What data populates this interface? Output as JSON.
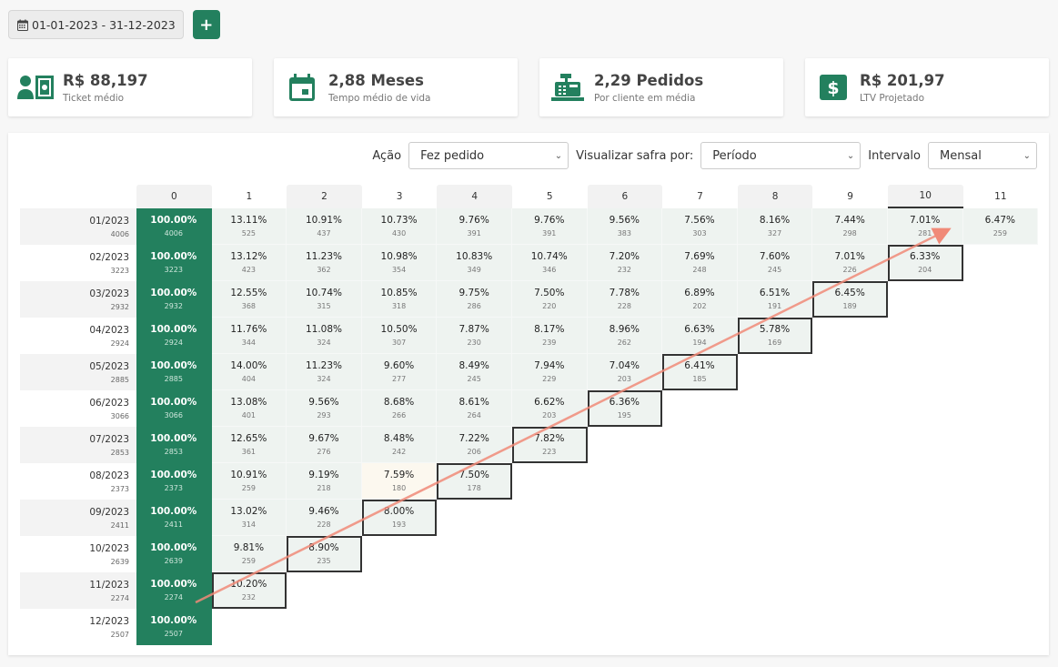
{
  "topbar": {
    "date_range": "01-01-2023 - 31-12-2023",
    "add_label": "+"
  },
  "kpis": [
    {
      "value": "R$ 88,197",
      "label": "Ticket médio",
      "icon": "money-user-icon"
    },
    {
      "value": "2,88 Meses",
      "label": "Tempo médio de vida",
      "icon": "calendar-icon"
    },
    {
      "value": "2,29 Pedidos",
      "label": "Por cliente em média",
      "icon": "cash-register-icon"
    },
    {
      "value": "R$ 201,97",
      "label": "LTV Projetado",
      "icon": "dollar-sign-icon"
    }
  ],
  "filters": {
    "action_label": "Ação",
    "action_value": "Fez pedido",
    "cohort_label": "Visualizar safra por:",
    "cohort_value": "Período",
    "interval_label": "Intervalo",
    "interval_value": "Mensal"
  },
  "colors": {
    "accent": "#23805e",
    "cell_bg": "#eef3f0",
    "highlight_border": "#333333",
    "arrow": "#f08a78"
  },
  "cohort": {
    "columns": [
      "0",
      "1",
      "2",
      "3",
      "4",
      "5",
      "6",
      "7",
      "8",
      "9",
      "10",
      "11"
    ],
    "rows": [
      {
        "month": "01/2023",
        "size": "4006",
        "cells": [
          [
            "100.00%",
            "4006"
          ],
          [
            "13.11%",
            "525"
          ],
          [
            "10.91%",
            "437"
          ],
          [
            "10.73%",
            "430"
          ],
          [
            "9.76%",
            "391"
          ],
          [
            "9.76%",
            "391"
          ],
          [
            "9.56%",
            "383"
          ],
          [
            "7.56%",
            "303"
          ],
          [
            "8.16%",
            "327"
          ],
          [
            "7.44%",
            "298"
          ],
          [
            "7.01%",
            "281"
          ],
          [
            "6.47%",
            "259"
          ]
        ]
      },
      {
        "month": "02/2023",
        "size": "3223",
        "cells": [
          [
            "100.00%",
            "3223"
          ],
          [
            "13.12%",
            "423"
          ],
          [
            "11.23%",
            "362"
          ],
          [
            "10.98%",
            "354"
          ],
          [
            "10.83%",
            "349"
          ],
          [
            "10.74%",
            "346"
          ],
          [
            "7.20%",
            "232"
          ],
          [
            "7.69%",
            "248"
          ],
          [
            "7.60%",
            "245"
          ],
          [
            "7.01%",
            "226"
          ],
          [
            "6.33%",
            "204"
          ]
        ]
      },
      {
        "month": "03/2023",
        "size": "2932",
        "cells": [
          [
            "100.00%",
            "2932"
          ],
          [
            "12.55%",
            "368"
          ],
          [
            "10.74%",
            "315"
          ],
          [
            "10.85%",
            "318"
          ],
          [
            "9.75%",
            "286"
          ],
          [
            "7.50%",
            "220"
          ],
          [
            "7.78%",
            "228"
          ],
          [
            "6.89%",
            "202"
          ],
          [
            "6.51%",
            "191"
          ],
          [
            "6.45%",
            "189"
          ]
        ]
      },
      {
        "month": "04/2023",
        "size": "2924",
        "cells": [
          [
            "100.00%",
            "2924"
          ],
          [
            "11.76%",
            "344"
          ],
          [
            "11.08%",
            "324"
          ],
          [
            "10.50%",
            "307"
          ],
          [
            "7.87%",
            "230"
          ],
          [
            "8.17%",
            "239"
          ],
          [
            "8.96%",
            "262"
          ],
          [
            "6.63%",
            "194"
          ],
          [
            "5.78%",
            "169"
          ]
        ]
      },
      {
        "month": "05/2023",
        "size": "2885",
        "cells": [
          [
            "100.00%",
            "2885"
          ],
          [
            "14.00%",
            "404"
          ],
          [
            "11.23%",
            "324"
          ],
          [
            "9.60%",
            "277"
          ],
          [
            "8.49%",
            "245"
          ],
          [
            "7.94%",
            "229"
          ],
          [
            "7.04%",
            "203"
          ],
          [
            "6.41%",
            "185"
          ]
        ]
      },
      {
        "month": "06/2023",
        "size": "3066",
        "cells": [
          [
            "100.00%",
            "3066"
          ],
          [
            "13.08%",
            "401"
          ],
          [
            "9.56%",
            "293"
          ],
          [
            "8.68%",
            "266"
          ],
          [
            "8.61%",
            "264"
          ],
          [
            "6.62%",
            "203"
          ],
          [
            "6.36%",
            "195"
          ]
        ]
      },
      {
        "month": "07/2023",
        "size": "2853",
        "cells": [
          [
            "100.00%",
            "2853"
          ],
          [
            "12.65%",
            "361"
          ],
          [
            "9.67%",
            "276"
          ],
          [
            "8.48%",
            "242"
          ],
          [
            "7.22%",
            "206"
          ],
          [
            "7.82%",
            "223"
          ]
        ]
      },
      {
        "month": "08/2023",
        "size": "2373",
        "cells": [
          [
            "100.00%",
            "2373"
          ],
          [
            "10.91%",
            "259"
          ],
          [
            "9.19%",
            "218"
          ],
          [
            "7.59%",
            "180"
          ],
          [
            "7.50%",
            "178"
          ]
        ]
      },
      {
        "month": "09/2023",
        "size": "2411",
        "cells": [
          [
            "100.00%",
            "2411"
          ],
          [
            "13.02%",
            "314"
          ],
          [
            "9.46%",
            "228"
          ],
          [
            "8.00%",
            "193"
          ]
        ]
      },
      {
        "month": "10/2023",
        "size": "2639",
        "cells": [
          [
            "100.00%",
            "2639"
          ],
          [
            "9.81%",
            "259"
          ],
          [
            "8.90%",
            "235"
          ]
        ]
      },
      {
        "month": "11/2023",
        "size": "2274",
        "cells": [
          [
            "100.00%",
            "2274"
          ],
          [
            "10.20%",
            "232"
          ]
        ]
      },
      {
        "month": "12/2023",
        "size": "2507",
        "cells": [
          [
            "100.00%",
            "2507"
          ]
        ]
      }
    ]
  }
}
